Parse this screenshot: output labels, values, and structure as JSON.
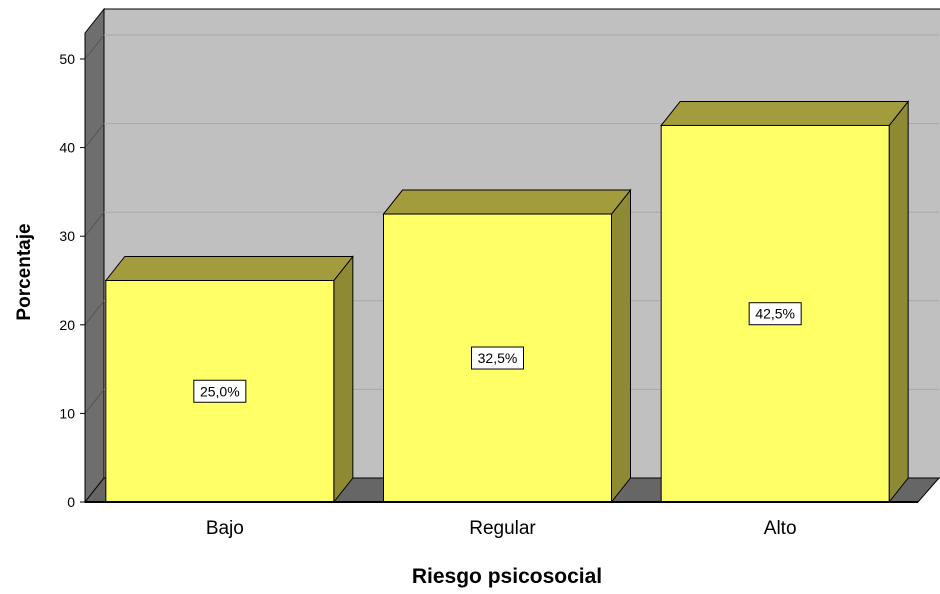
{
  "chart_data": {
    "type": "bar",
    "title": "",
    "xlabel": "Riesgo psicosocial",
    "ylabel": "Porcentaje",
    "categories": [
      "Bajo",
      "Regular",
      "Alto"
    ],
    "values": [
      25.0,
      32.5,
      42.5
    ],
    "data_labels": [
      "25,0%",
      "32,5%",
      "42,5%"
    ],
    "ylim": [
      0,
      50
    ],
    "yticks": [
      "0",
      "10",
      "20",
      "30",
      "40",
      "50"
    ],
    "grid": true,
    "legend": "none",
    "style": "3d",
    "colors": {
      "bar_front": "#ffff66",
      "bar_top": "#a39c3d",
      "bar_side": "#8e8a33",
      "plot_back": "#c0c0c0",
      "plot_floor": "#666666",
      "plot_wall": "#6e6e6e"
    }
  }
}
